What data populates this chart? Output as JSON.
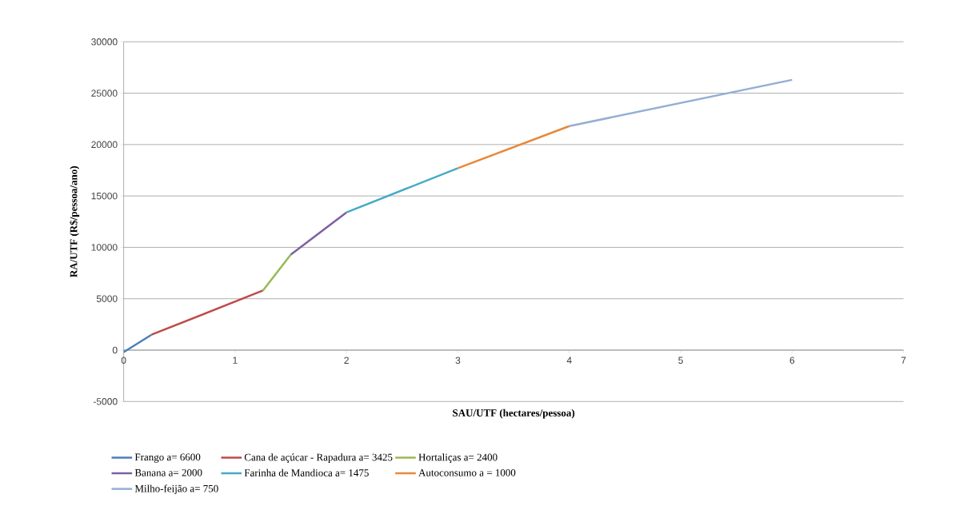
{
  "chart_data": {
    "type": "line",
    "xlabel": "SAU/UTF (hectares/pessoa)",
    "ylabel": "RA/UTF (R$/pessoa/ano)",
    "xlim": [
      0,
      7
    ],
    "xticks": [
      0,
      1,
      2,
      3,
      4,
      5,
      6,
      7
    ],
    "ylim": [
      -5000,
      30000
    ],
    "yticks": [
      -5000,
      0,
      5000,
      10000,
      15000,
      20000,
      25000,
      30000
    ],
    "grid": "y",
    "legend": "bottom",
    "series": [
      {
        "name": "Frango a= 6600",
        "color": "#4a7ebb",
        "x": [
          0,
          0.25
        ],
        "values": [
          -200,
          1500
        ]
      },
      {
        "name": "Cana de açúcar - Rapadura a= 3425",
        "color": "#be4b48",
        "x": [
          0.25,
          1.25
        ],
        "values": [
          1500,
          5800
        ]
      },
      {
        "name": "Hortaliças a= 2400",
        "color": "#98b954",
        "x": [
          1.25,
          1.5
        ],
        "values": [
          5800,
          9300
        ]
      },
      {
        "name": "Banana a= 2000",
        "color": "#7d60a0",
        "x": [
          1.5,
          2
        ],
        "values": [
          9300,
          13400
        ]
      },
      {
        "name": "Farinha de Mandioca a= 1475",
        "color": "#46aac5",
        "x": [
          2,
          3
        ],
        "values": [
          13400,
          17700
        ]
      },
      {
        "name": "Autoconsumo a = 1000",
        "color": "#e8883a",
        "x": [
          3,
          4
        ],
        "values": [
          17700,
          21800
        ]
      },
      {
        "name": "Milho-feijão a= 750",
        "color": "#94aed4",
        "x": [
          4,
          6
        ],
        "values": [
          21800,
          26300
        ]
      }
    ]
  }
}
